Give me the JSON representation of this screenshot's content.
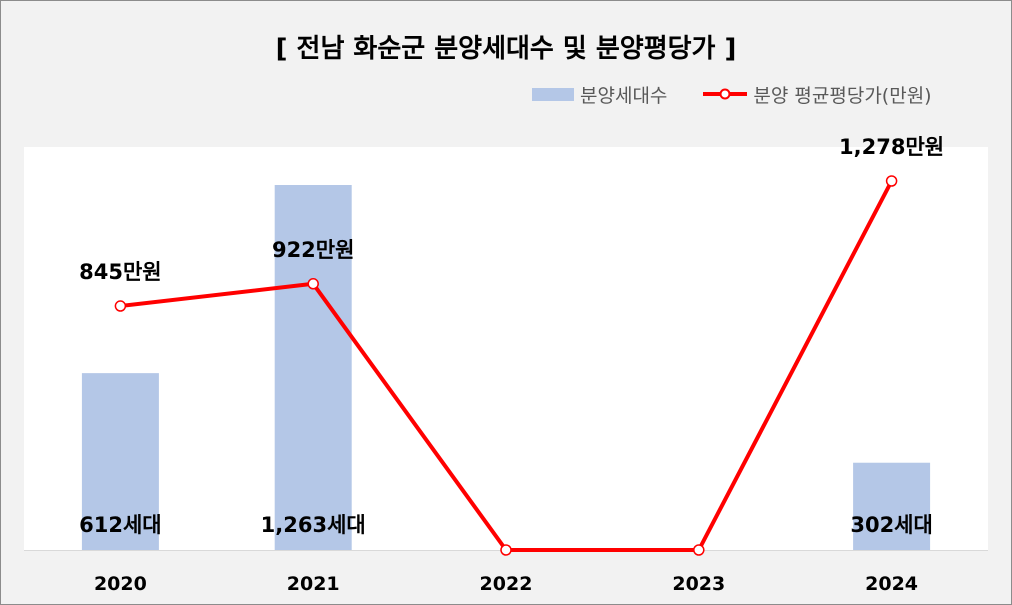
{
  "chart_data": {
    "type": "bar",
    "title": "[ 전남 화순군 분양세대수 및 분양평당가 ]",
    "categories": [
      "2020",
      "2021",
      "2022",
      "2023",
      "2024"
    ],
    "series": [
      {
        "name": "분양세대수",
        "type": "bar",
        "axis": "left",
        "values": [
          612,
          1263,
          0,
          0,
          302
        ],
        "labels": [
          "612세대",
          "1,263세대",
          "",
          "",
          "302세대"
        ],
        "color": "#b4c7e7"
      },
      {
        "name": "분양 평균평당가(만원)",
        "type": "line",
        "axis": "right",
        "values": [
          845,
          922,
          0,
          0,
          1278
        ],
        "labels": [
          "845만원",
          "922만원",
          "",
          "",
          "1,278만원"
        ],
        "color": "#ff0000"
      }
    ],
    "ylim_left": [
      0,
      1400
    ],
    "ylim_right": [
      0,
      1400
    ],
    "grid": false,
    "legend_position": "top-right"
  }
}
